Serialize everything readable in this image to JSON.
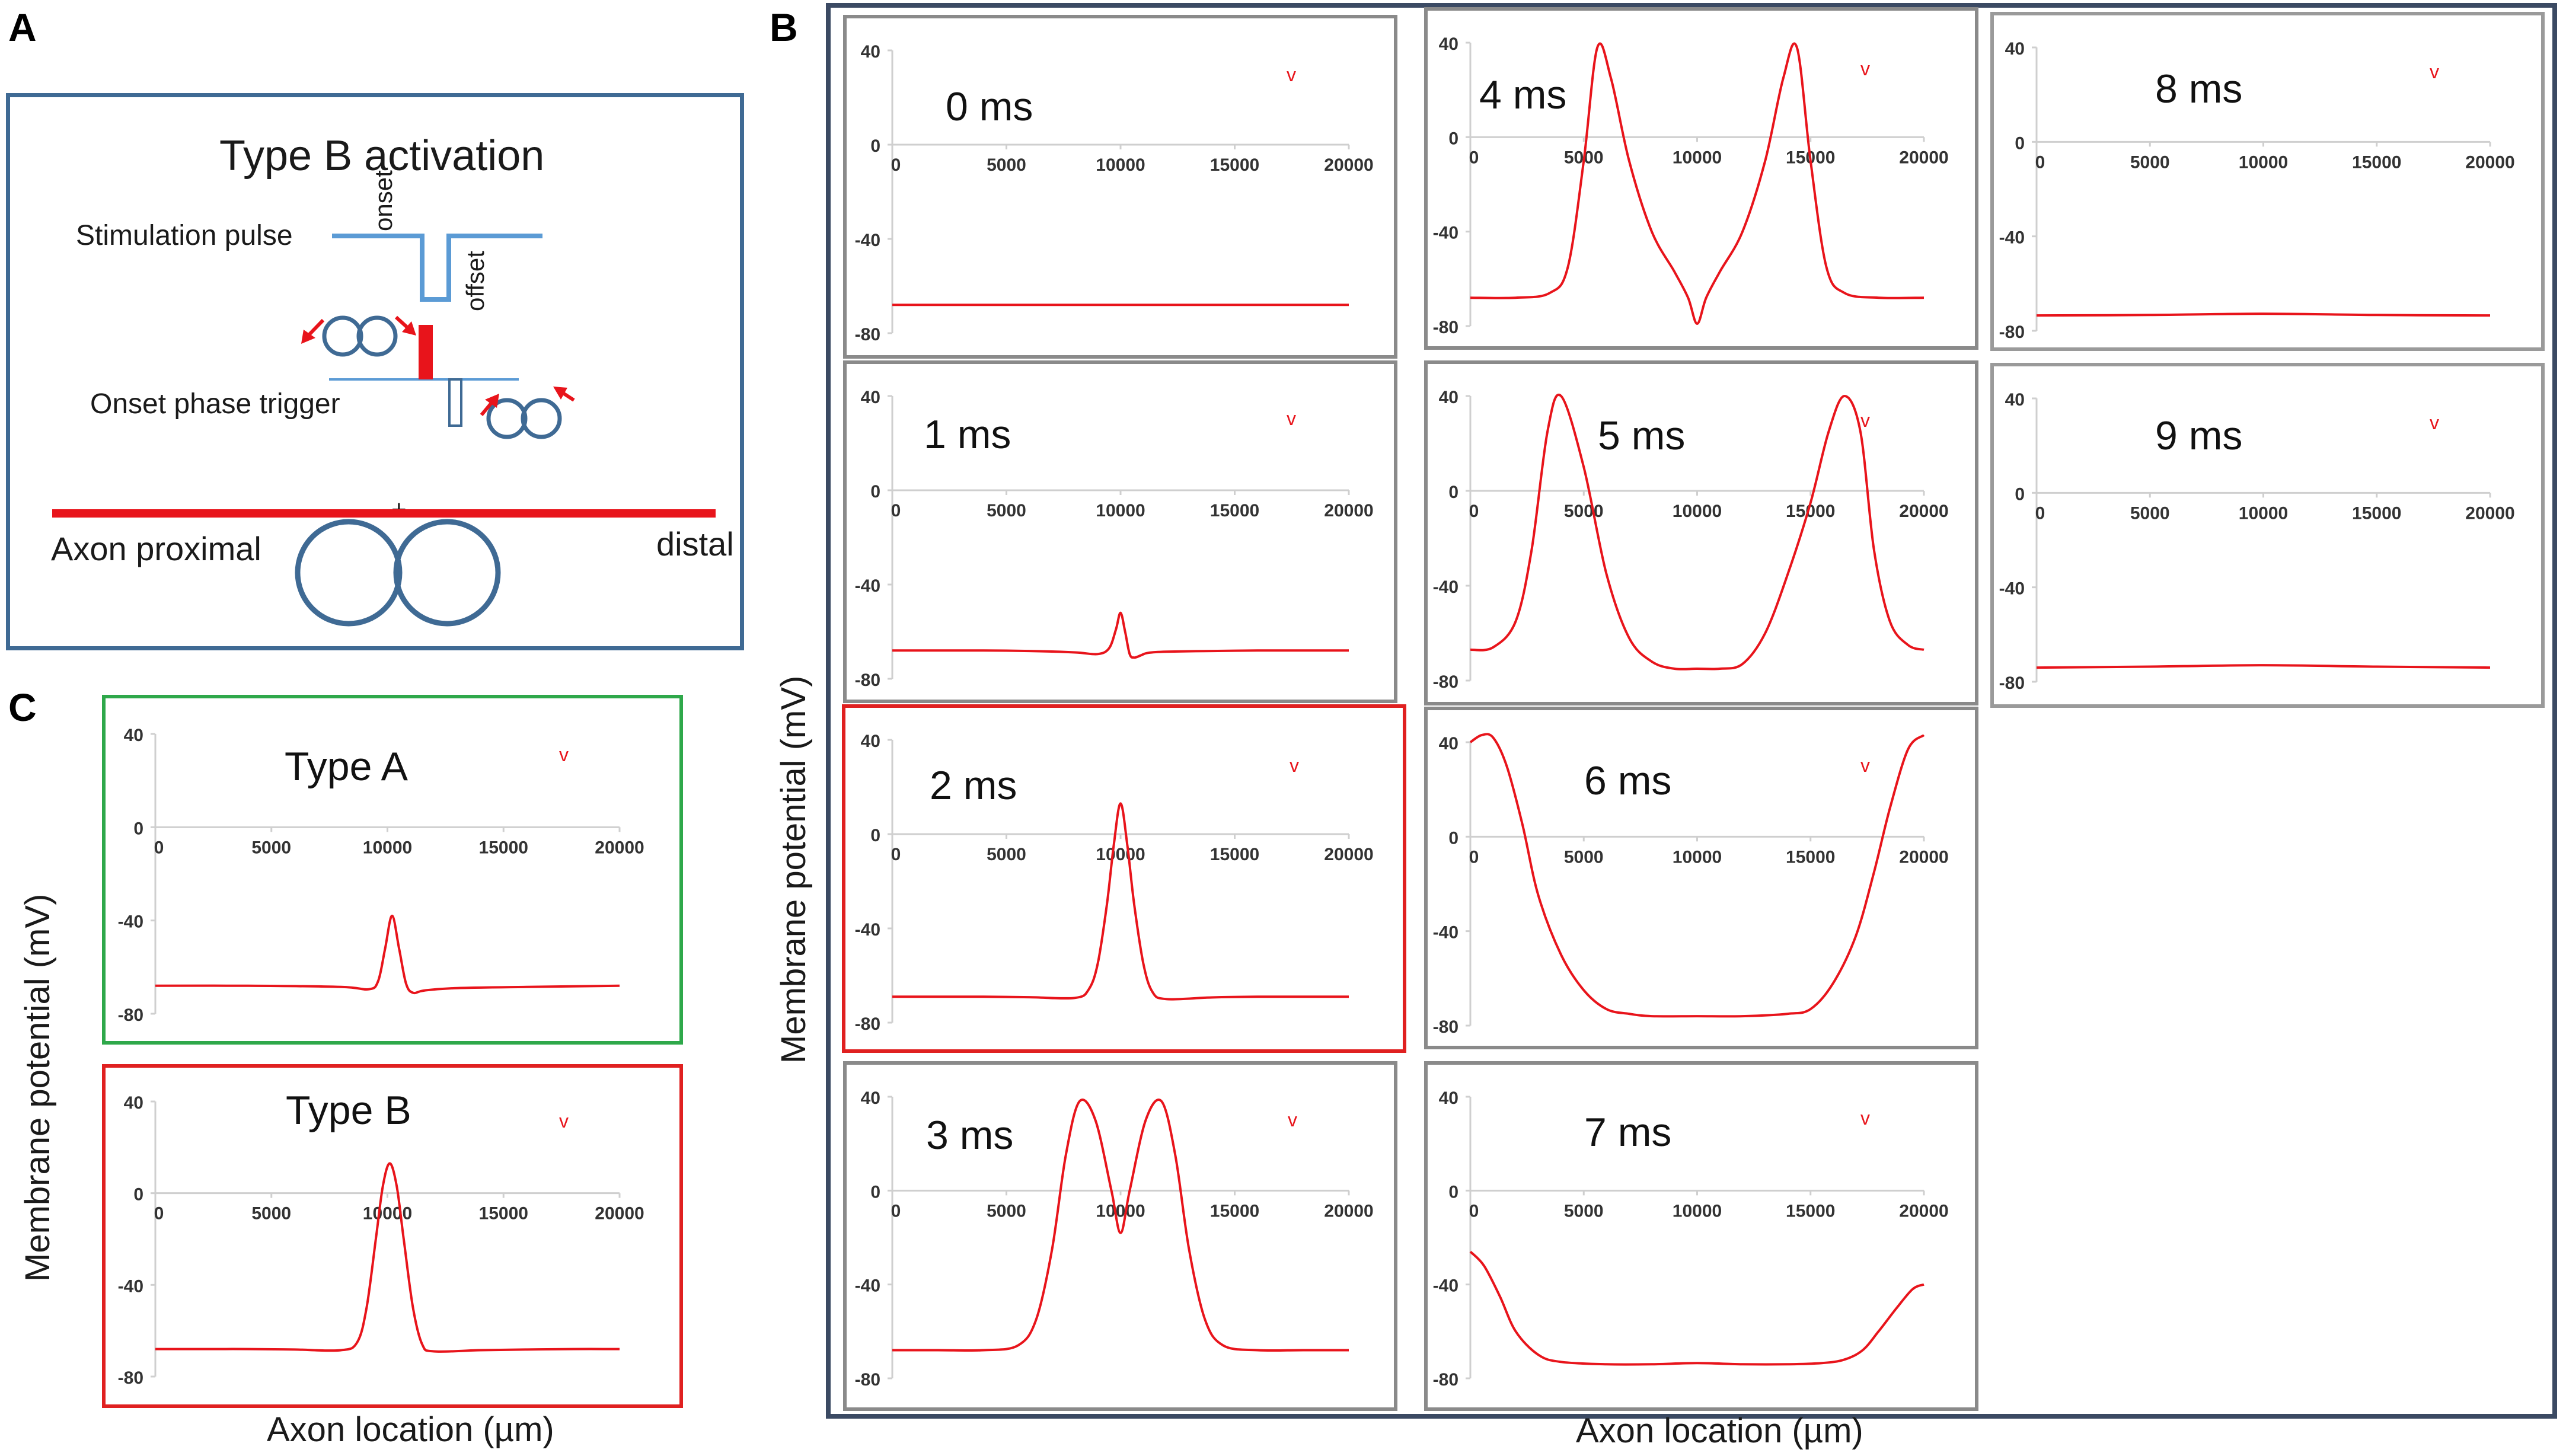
{
  "panels": {
    "a_letter": "A",
    "b_letter": "B",
    "c_letter": "C"
  },
  "diagram": {
    "title": "Type B activation",
    "stimulation_label": "Stimulation pulse",
    "onset_label": "onset",
    "offset_label": "offset",
    "trigger_label": "Onset phase trigger",
    "axon_label": "Axon proximal",
    "distal_label": "distal",
    "plus_label": "+",
    "colors": {
      "frame": "#3f6a94",
      "pulse": "#5b9bd5",
      "axon": "#e8141b",
      "cell": "#3f6a94"
    }
  },
  "axes": {
    "b_ylabel": "Membrane potential (mV)",
    "b_xlabel": "Axon location (µm)",
    "c_ylabel": "Membrane potential (mV)",
    "c_xlabel": "Axon location (µm)"
  },
  "chart_data": [
    {
      "id": "t0",
      "type": "line",
      "title": "0 ms",
      "marker": "v",
      "xlim": [
        0,
        20000
      ],
      "ylim": [
        -80,
        40
      ],
      "yticks": [
        40,
        0,
        -40,
        -80
      ],
      "xticks": [
        0,
        5000,
        10000,
        15000,
        20000
      ],
      "x_tick_labels": [
        "0",
        "5000",
        "10000",
        "15000",
        "20000"
      ],
      "y_tick_labels": [
        "40",
        "0",
        "-40",
        "-80"
      ],
      "x": [
        0,
        5000,
        10000,
        15000,
        20000
      ],
      "y": [
        -68,
        -68,
        -68,
        -68,
        -68
      ]
    },
    {
      "id": "t1",
      "type": "line",
      "title": "1 ms",
      "marker": "v",
      "xlim": [
        0,
        20000
      ],
      "ylim": [
        -80,
        40
      ],
      "yticks": [
        40,
        0,
        -40,
        -80
      ],
      "xticks": [
        0,
        5000,
        10000,
        15000,
        20000
      ],
      "x_tick_labels": [
        "0",
        "5000",
        "10000",
        "15000",
        "20000"
      ],
      "y_tick_labels": [
        "40",
        "0",
        "-40",
        "-80"
      ],
      "x": [
        0,
        2000,
        4000,
        6000,
        8000,
        9000,
        9500,
        9800,
        10000,
        10200,
        10400,
        10600,
        10900,
        11200,
        12000,
        14000,
        16000,
        18000,
        20000
      ],
      "y": [
        -68,
        -68,
        -68,
        -68.2,
        -68.8,
        -69.5,
        -67,
        -59,
        -52,
        -60,
        -69.5,
        -71,
        -70,
        -69,
        -68.5,
        -68.2,
        -68,
        -68,
        -68
      ]
    },
    {
      "id": "t2",
      "type": "line",
      "title": "2 ms",
      "marker": "v",
      "xlim": [
        0,
        20000
      ],
      "ylim": [
        -80,
        40
      ],
      "yticks": [
        40,
        0,
        -40,
        -80
      ],
      "xticks": [
        0,
        5000,
        10000,
        15000,
        20000
      ],
      "x_tick_labels": [
        "0",
        "5000",
        "10000",
        "15000",
        "20000"
      ],
      "y_tick_labels": [
        "40",
        "0",
        "-40",
        "-80"
      ],
      "x": [
        0,
        2000,
        4000,
        6000,
        8000,
        8600,
        9000,
        9400,
        9700,
        10000,
        10300,
        10600,
        11000,
        11400,
        12000,
        14000,
        16000,
        18000,
        20000
      ],
      "y": [
        -69,
        -69,
        -69,
        -69.2,
        -69.5,
        -66,
        -55,
        -30,
        -5,
        13,
        -5,
        -30,
        -55,
        -67,
        -70,
        -69.3,
        -69,
        -69,
        -69
      ]
    },
    {
      "id": "t3",
      "type": "line",
      "title": "3 ms",
      "marker": "v",
      "xlim": [
        0,
        20000
      ],
      "ylim": [
        -80,
        40
      ],
      "yticks": [
        40,
        0,
        -40,
        -80
      ],
      "xticks": [
        0,
        5000,
        10000,
        15000,
        20000
      ],
      "x_tick_labels": [
        "0",
        "5000",
        "10000",
        "15000",
        "20000"
      ],
      "y_tick_labels": [
        "40",
        "0",
        "-40",
        "-80"
      ],
      "x": [
        0,
        2000,
        4000,
        5500,
        6300,
        7000,
        7600,
        8200,
        8900,
        9600,
        10000,
        10400,
        11100,
        11800,
        12400,
        13000,
        13700,
        14500,
        16000,
        18000,
        20000
      ],
      "y": [
        -68,
        -68,
        -68,
        -66,
        -55,
        -25,
        15,
        38,
        30,
        0,
        -18,
        0,
        30,
        38,
        15,
        -25,
        -55,
        -66,
        -68,
        -68,
        -68
      ]
    },
    {
      "id": "t4",
      "type": "line",
      "title": "4 ms",
      "marker": "v",
      "xlim": [
        0,
        20000
      ],
      "ylim": [
        -80,
        40
      ],
      "yticks": [
        40,
        0,
        -40,
        -80
      ],
      "xticks": [
        0,
        5000,
        10000,
        15000,
        20000
      ],
      "x_tick_labels": [
        "0",
        "5000",
        "10000",
        "15000",
        "20000"
      ],
      "y_tick_labels": [
        "40",
        "0",
        "-40",
        "-80"
      ],
      "x": [
        0,
        2000,
        3500,
        4300,
        5000,
        5600,
        6200,
        7000,
        8000,
        9000,
        9600,
        10000,
        10400,
        11000,
        12000,
        13000,
        13800,
        14400,
        15000,
        15700,
        16500,
        18000,
        20000
      ],
      "y": [
        -68,
        -68,
        -66,
        -55,
        -10,
        38,
        25,
        -10,
        -40,
        -57,
        -68,
        -79,
        -68,
        -57,
        -40,
        -10,
        25,
        38,
        -10,
        -55,
        -66,
        -68,
        -68
      ]
    },
    {
      "id": "t5",
      "type": "line",
      "title": "5 ms",
      "marker": "v",
      "xlim": [
        0,
        20000
      ],
      "ylim": [
        -80,
        40
      ],
      "yticks": [
        40,
        0,
        -40,
        -80
      ],
      "xticks": [
        0,
        5000,
        10000,
        15000,
        20000
      ],
      "x_tick_labels": [
        "0",
        "5000",
        "10000",
        "15000",
        "20000"
      ],
      "y_tick_labels": [
        "40",
        "0",
        "-40",
        "-80"
      ],
      "x": [
        0,
        1000,
        2000,
        2700,
        3400,
        4000,
        5000,
        6000,
        7000,
        8000,
        9000,
        10000,
        11000,
        12000,
        13000,
        14000,
        15000,
        15800,
        16500,
        17200,
        17800,
        18500,
        19300,
        20000
      ],
      "y": [
        -67,
        -66,
        -55,
        -25,
        25,
        40,
        10,
        -35,
        -62,
        -72,
        -75,
        -75,
        -75,
        -73,
        -60,
        -35,
        -5,
        25,
        40,
        25,
        -25,
        -55,
        -65,
        -67
      ]
    },
    {
      "id": "t6",
      "type": "line",
      "title": "6 ms",
      "marker": "v",
      "xlim": [
        0,
        20000
      ],
      "ylim": [
        -80,
        40
      ],
      "yticks": [
        40,
        0,
        -40,
        -80
      ],
      "xticks": [
        0,
        5000,
        10000,
        15000,
        20000
      ],
      "x_tick_labels": [
        "0",
        "5000",
        "10000",
        "15000",
        "20000"
      ],
      "y_tick_labels": [
        "40",
        "0",
        "-40",
        "-80"
      ],
      "x": [
        0,
        500,
        1000,
        1600,
        2300,
        3000,
        4000,
        5000,
        6000,
        7000,
        8000,
        10000,
        12000,
        14000,
        15000,
        16000,
        17000,
        17800,
        18500,
        19300,
        20000
      ],
      "y": [
        40,
        43,
        42,
        30,
        5,
        -25,
        -50,
        -65,
        -73,
        -75,
        -76,
        -76,
        -76,
        -75,
        -73,
        -62,
        -42,
        -15,
        12,
        37,
        43
      ]
    },
    {
      "id": "t7",
      "type": "line",
      "title": "7 ms",
      "marker": "v",
      "xlim": [
        0,
        20000
      ],
      "ylim": [
        -80,
        40
      ],
      "yticks": [
        40,
        0,
        -40,
        -80
      ],
      "xticks": [
        0,
        5000,
        10000,
        15000,
        20000
      ],
      "x_tick_labels": [
        "0",
        "5000",
        "10000",
        "15000",
        "20000"
      ],
      "y_tick_labels": [
        "40",
        "0",
        "-40",
        "-80"
      ],
      "x": [
        0,
        600,
        1300,
        2000,
        3000,
        4000,
        6000,
        8000,
        10000,
        12000,
        14000,
        15500,
        16500,
        17300,
        18000,
        18800,
        19500,
        20000
      ],
      "y": [
        -26,
        -32,
        -45,
        -60,
        -70,
        -73,
        -74,
        -74,
        -73.5,
        -74,
        -74,
        -73.5,
        -72,
        -68,
        -60,
        -50,
        -42,
        -40
      ]
    },
    {
      "id": "t8",
      "type": "line",
      "title": "8 ms",
      "marker": "v",
      "xlim": [
        0,
        20000
      ],
      "ylim": [
        -80,
        40
      ],
      "yticks": [
        40,
        0,
        -40,
        -80
      ],
      "xticks": [
        0,
        5000,
        10000,
        15000,
        20000
      ],
      "x_tick_labels": [
        "0",
        "5000",
        "10000",
        "15000",
        "20000"
      ],
      "y_tick_labels": [
        "40",
        "0",
        "-40",
        "-80"
      ],
      "x": [
        0,
        5000,
        10000,
        15000,
        20000
      ],
      "y": [
        -73.5,
        -73.3,
        -72.8,
        -73.3,
        -73.5
      ]
    },
    {
      "id": "t9",
      "type": "line",
      "title": "9 ms",
      "marker": "v",
      "xlim": [
        0,
        20000
      ],
      "ylim": [
        -80,
        40
      ],
      "yticks": [
        40,
        0,
        -40,
        -80
      ],
      "xticks": [
        0,
        5000,
        10000,
        15000,
        20000
      ],
      "x_tick_labels": [
        "0",
        "5000",
        "10000",
        "15000",
        "20000"
      ],
      "y_tick_labels": [
        "40",
        "0",
        "-40",
        "-80"
      ],
      "x": [
        0,
        5000,
        10000,
        15000,
        20000
      ],
      "y": [
        -74,
        -73.6,
        -73,
        -73.6,
        -74
      ]
    },
    {
      "id": "typeA",
      "type": "line",
      "title": "Type A",
      "marker": "v",
      "xlim": [
        0,
        20000
      ],
      "ylim": [
        -80,
        40
      ],
      "yticks": [
        40,
        0,
        -40,
        -80
      ],
      "xticks": [
        0,
        5000,
        10000,
        15000,
        20000
      ],
      "x_tick_labels": [
        "0",
        "5000",
        "10000",
        "15000",
        "20000"
      ],
      "y_tick_labels": [
        "40",
        "0",
        "-40",
        "-80"
      ],
      "x": [
        0,
        4000,
        8000,
        9200,
        9600,
        9900,
        10200,
        10500,
        10800,
        11100,
        11600,
        13000,
        16000,
        20000
      ],
      "y": [
        -68,
        -68,
        -68.5,
        -69.5,
        -66,
        -52,
        -38,
        -52,
        -67,
        -71,
        -70,
        -69,
        -68.5,
        -68
      ]
    },
    {
      "id": "typeB",
      "type": "line",
      "title": "Type B",
      "marker": "v",
      "xlim": [
        0,
        20000
      ],
      "ylim": [
        -80,
        40
      ],
      "yticks": [
        40,
        0,
        -40,
        -80
      ],
      "xticks": [
        0,
        5000,
        10000,
        15000,
        20000
      ],
      "x_tick_labels": [
        "0",
        "5000",
        "10000",
        "15000",
        "20000"
      ],
      "y_tick_labels": [
        "40",
        "0",
        "-40",
        "-80"
      ],
      "x": [
        0,
        2000,
        4000,
        6000,
        8000,
        8700,
        9100,
        9500,
        9800,
        10100,
        10400,
        10700,
        11100,
        11500,
        12000,
        14000,
        16000,
        18000,
        20000
      ],
      "y": [
        -68,
        -68,
        -68,
        -68.2,
        -68.5,
        -65,
        -50,
        -20,
        3,
        13,
        3,
        -20,
        -50,
        -66,
        -69,
        -68.5,
        -68.2,
        -68,
        -68
      ]
    }
  ]
}
